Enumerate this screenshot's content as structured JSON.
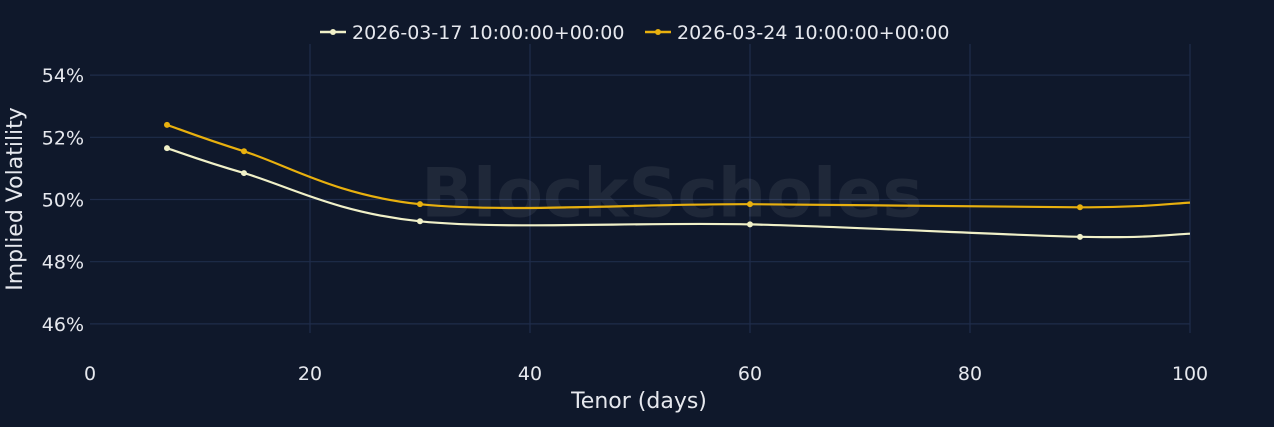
{
  "watermark": "BlockScholes",
  "colors": {
    "background": "#0f182b",
    "grid": "#1f2c4a",
    "text": "#e6e8ee"
  },
  "chart_data": {
    "type": "line",
    "title": "",
    "xlabel": "Tenor (days)",
    "ylabel": "Implied Volatility",
    "xlim": [
      0,
      100
    ],
    "ylim": [
      45.0,
      55.0
    ],
    "x_ticks": [
      0,
      20,
      40,
      60,
      80,
      100
    ],
    "y_ticks": [
      46,
      48,
      50,
      52,
      54
    ],
    "y_tick_suffix": "%",
    "grid": true,
    "legend_position": "top-center",
    "series": [
      {
        "name": "2026-03-17 10:00:00+00:00",
        "color": "#f0f0c8",
        "x": [
          7,
          14,
          30,
          60,
          90,
          100
        ],
        "values": [
          51.65,
          50.85,
          49.3,
          49.2,
          48.8,
          48.9
        ]
      },
      {
        "name": "2026-03-24 10:00:00+00:00",
        "color": "#e8b00e",
        "x": [
          7,
          14,
          30,
          60,
          90,
          100
        ],
        "values": [
          52.4,
          51.55,
          49.85,
          49.85,
          49.75,
          49.9
        ]
      }
    ]
  }
}
